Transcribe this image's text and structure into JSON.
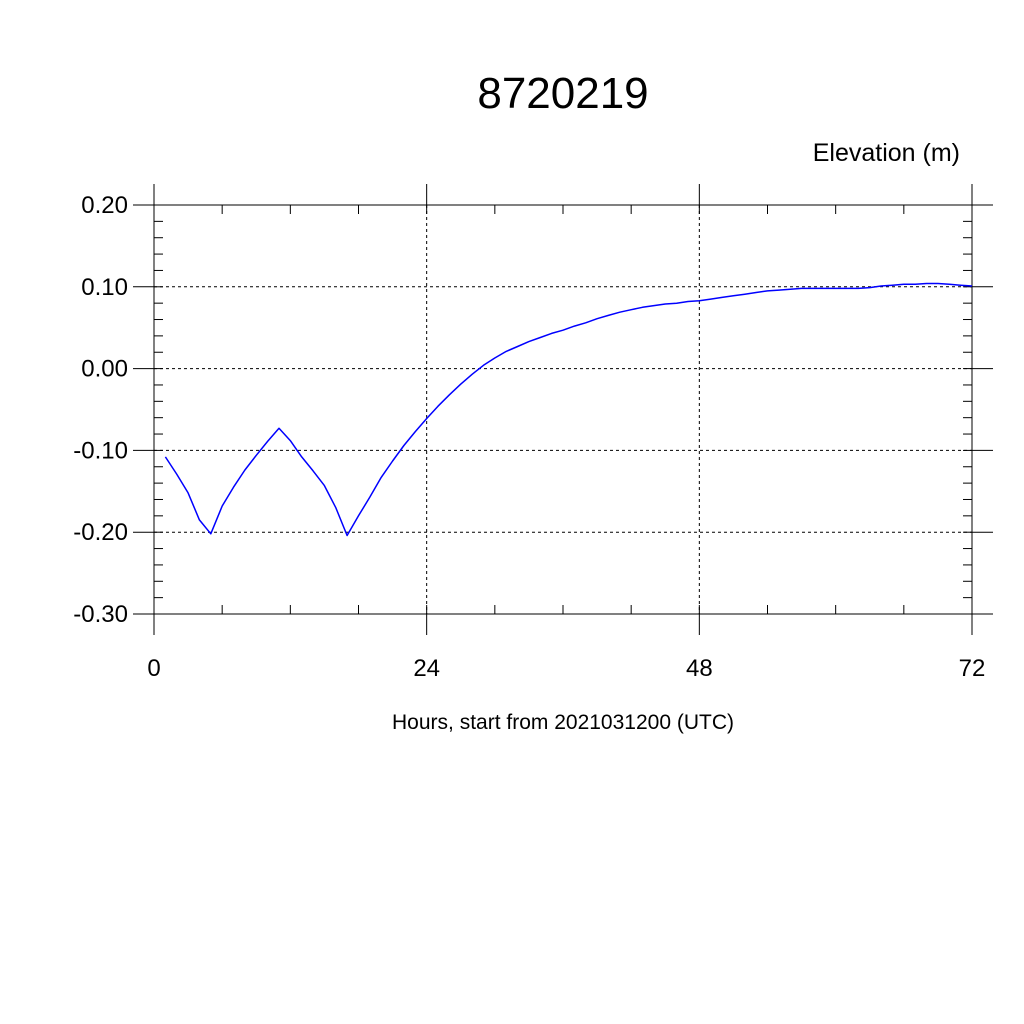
{
  "chart_data": {
    "type": "line",
    "title": "8720219",
    "ylabel": "Elevation (m)",
    "xlabel": "Hours, start from 2021031200 (UTC)",
    "xlim": [
      0,
      72
    ],
    "ylim": [
      -0.3,
      0.2
    ],
    "x_ticks": [
      0,
      24,
      48,
      72
    ],
    "x_tick_labels": [
      "0",
      "24",
      "48",
      "72"
    ],
    "x_minor_step": 6,
    "y_ticks": [
      -0.3,
      -0.2,
      -0.1,
      0.0,
      0.1,
      0.2
    ],
    "y_tick_labels": [
      "-0.30",
      "-0.20",
      "-0.10",
      "0.00",
      "0.10",
      "0.20"
    ],
    "y_minor_step": 0.02,
    "grid": true,
    "line_color": "#0000ff",
    "series": [
      {
        "x": [
          1,
          2,
          3,
          4,
          5,
          6,
          7,
          8,
          9,
          10,
          11,
          12,
          13,
          14,
          15,
          16,
          17,
          18,
          19,
          20,
          21,
          22,
          23,
          24,
          25,
          26,
          27,
          28,
          29,
          30,
          31,
          32,
          33,
          34,
          35,
          36,
          37,
          38,
          39,
          40,
          41,
          42,
          43,
          44,
          45,
          46,
          47,
          48,
          49,
          50,
          51,
          52,
          53,
          54,
          55,
          56,
          57,
          58,
          59,
          60,
          61,
          62,
          63,
          64,
          65,
          66,
          67,
          68,
          69,
          70,
          71,
          72
        ],
        "values": [
          -0.108,
          -0.129,
          -0.152,
          -0.185,
          -0.202,
          -0.168,
          -0.145,
          -0.124,
          -0.106,
          -0.089,
          -0.073,
          -0.088,
          -0.108,
          -0.125,
          -0.143,
          -0.17,
          -0.204,
          -0.18,
          -0.157,
          -0.133,
          -0.113,
          -0.094,
          -0.077,
          -0.061,
          -0.046,
          -0.032,
          -0.019,
          -0.007,
          0.004,
          0.013,
          0.021,
          0.027,
          0.033,
          0.038,
          0.043,
          0.047,
          0.052,
          0.056,
          0.061,
          0.065,
          0.069,
          0.072,
          0.075,
          0.077,
          0.079,
          0.08,
          0.082,
          0.083,
          0.085,
          0.087,
          0.089,
          0.091,
          0.093,
          0.095,
          0.096,
          0.097,
          0.098,
          0.098,
          0.098,
          0.098,
          0.098,
          0.098,
          0.099,
          0.101,
          0.102,
          0.103,
          0.103,
          0.104,
          0.104,
          0.103,
          0.102,
          0.101
        ]
      }
    ]
  }
}
